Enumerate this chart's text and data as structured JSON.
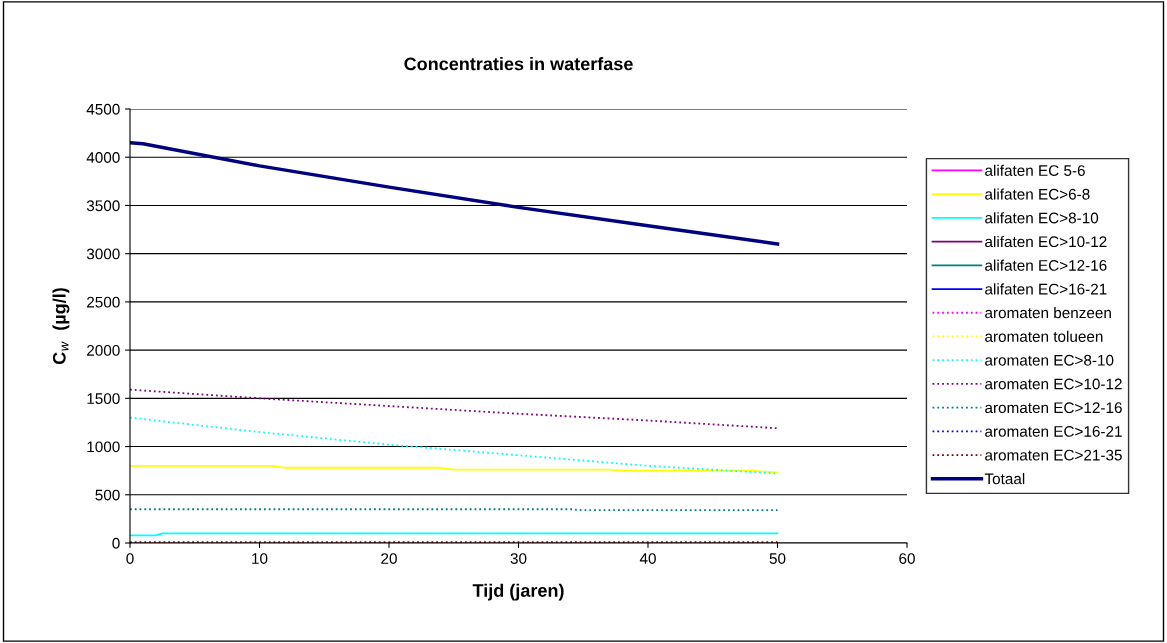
{
  "chart_data": {
    "type": "line",
    "title": "Concentraties in waterfase",
    "xlabel": "Tijd (jaren)",
    "ylabel": "C$_{w}$  (µg/l)",
    "xlim": [
      0,
      60
    ],
    "xticks": [
      0,
      10,
      20,
      30,
      40,
      50,
      60
    ],
    "ylim": [
      0,
      4500
    ],
    "yticks": [
      0,
      500,
      1000,
      1500,
      2000,
      2500,
      3000,
      3500,
      4000,
      4500
    ],
    "grid": "y",
    "legend": "right",
    "marker": "none",
    "series": [
      {
        "name": "alifaten EC 5-6",
        "color": "#ff00ff",
        "line_style": "solid"
      },
      {
        "name": "alifaten EC>6-8",
        "color": "#ffff00",
        "line_style": "solid",
        "x": [
          0,
          11,
          12,
          24,
          25,
          37,
          38,
          48,
          50
        ],
        "values": [
          800,
          800,
          780,
          780,
          760,
          760,
          750,
          750,
          730
        ]
      },
      {
        "name": "alifaten EC>8-10",
        "color": "#00ffff",
        "line_style": "solid",
        "x": [
          0,
          2,
          2.5,
          50
        ],
        "values": [
          80,
          80,
          100,
          100
        ]
      },
      {
        "name": "alifaten EC>10-12",
        "color": "#800080",
        "line_style": "solid"
      },
      {
        "name": "alifaten EC>12-16",
        "color": "#008080",
        "line_style": "solid"
      },
      {
        "name": "alifaten EC>16-21",
        "color": "#0000ff",
        "line_style": "solid"
      },
      {
        "name": "aromaten benzeen",
        "color": "#ff00ff",
        "line_style": "dotted"
      },
      {
        "name": "aromaten tolueen",
        "color": "#ffff00",
        "line_style": "dotted"
      },
      {
        "name": "aromaten EC>8-10",
        "color": "#00ffff",
        "line_style": "dotted",
        "x": [
          0,
          10,
          20,
          30,
          40,
          50
        ],
        "values": [
          1300,
          1150,
          1020,
          910,
          800,
          720
        ]
      },
      {
        "name": "aromaten EC>10-12",
        "color": "#800080",
        "line_style": "dotted",
        "x": [
          0,
          10,
          20,
          30,
          40,
          50
        ],
        "values": [
          1590,
          1500,
          1420,
          1340,
          1270,
          1190
        ]
      },
      {
        "name": "aromaten EC>12-16",
        "color": "#008080",
        "line_style": "dotted",
        "x": [
          0,
          34,
          35,
          50
        ],
        "values": [
          350,
          350,
          340,
          340
        ]
      },
      {
        "name": "aromaten EC>16-21",
        "color": "#0000ff",
        "line_style": "dotted"
      },
      {
        "name": "aromaten EC>21-35",
        "color": "#800000",
        "line_style": "dotted",
        "x": [
          0,
          50
        ],
        "values": [
          10,
          10
        ]
      },
      {
        "name": "Totaal",
        "color": "#000080",
        "line_style": "solid",
        "x": [
          0,
          1,
          10,
          20,
          30,
          40,
          50
        ],
        "values": [
          4150,
          4140,
          3910,
          3690,
          3480,
          3290,
          3100
        ]
      }
    ]
  }
}
